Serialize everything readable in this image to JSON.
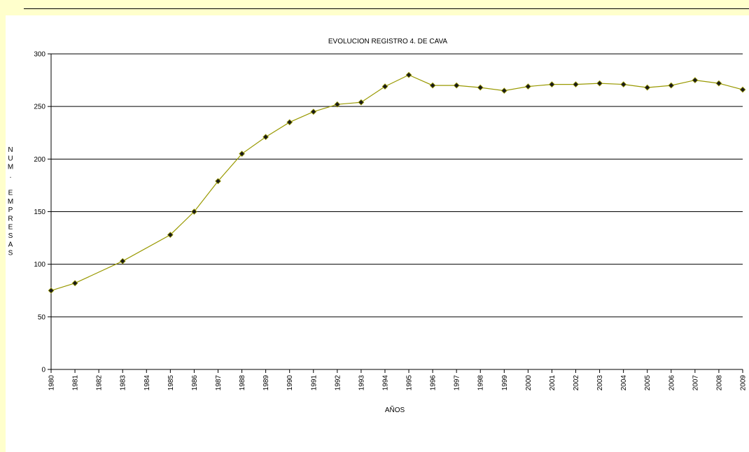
{
  "chart_data": {
    "type": "line",
    "title": "EVOLUCION REGISTRO 4. DE CAVA",
    "xlabel": "AÑOS",
    "ylabel": "N U M .   E M P R E S A S",
    "ylabel_letters": [
      "N",
      "U",
      "M",
      ".",
      "",
      "E",
      "M",
      "P",
      "R",
      "E",
      "S",
      "A",
      "S"
    ],
    "ylim": [
      0,
      300
    ],
    "yticks": [
      0,
      50,
      100,
      150,
      200,
      250,
      300
    ],
    "grid": true,
    "legend": "none",
    "line_color": "#999900",
    "marker_color": "#1a1a1a",
    "categories": [
      "1980",
      "1981",
      "1982",
      "1983",
      "1984",
      "1985",
      "1986",
      "1987",
      "1988",
      "1989",
      "1990",
      "1991",
      "1992",
      "1993",
      "1994",
      "1995",
      "1996",
      "1997",
      "1998",
      "1999",
      "2000",
      "2001",
      "2002",
      "2003",
      "2004",
      "2005",
      "2006",
      "2007",
      "2008",
      "2009"
    ],
    "values": [
      75,
      82,
      null,
      103,
      null,
      128,
      150,
      179,
      205,
      221,
      235,
      245,
      252,
      254,
      269,
      280,
      270,
      270,
      268,
      265,
      269,
      271,
      271,
      272,
      271,
      268,
      270,
      275,
      272,
      266
    ]
  }
}
